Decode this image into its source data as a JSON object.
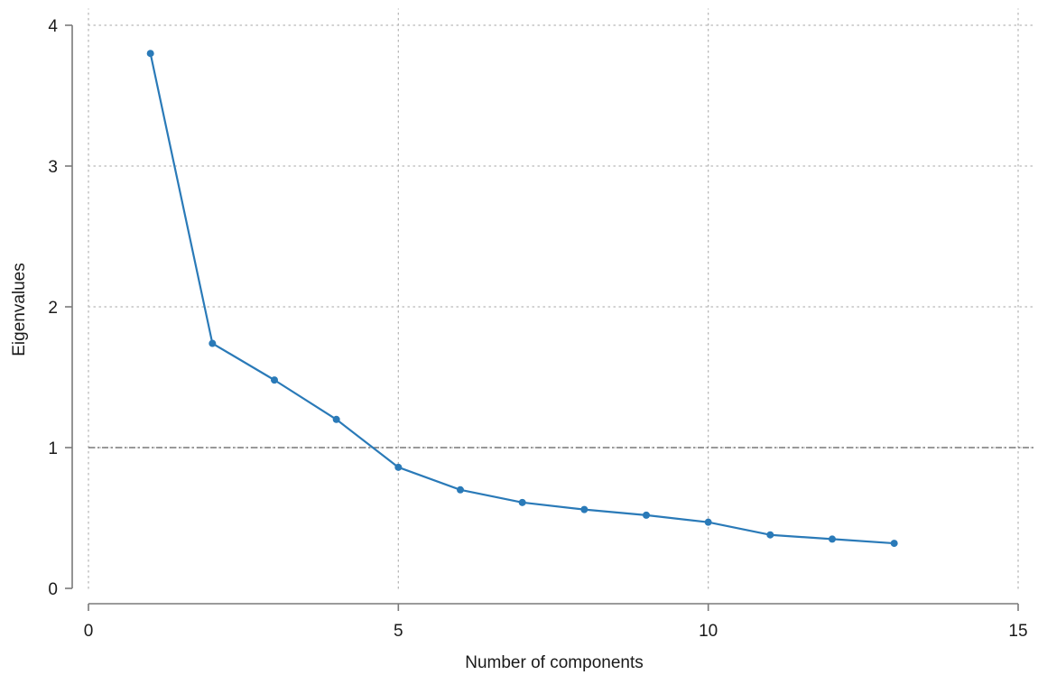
{
  "chart_data": {
    "type": "line",
    "title": "",
    "xlabel": "Number of components",
    "ylabel": "Eigenvalues",
    "xlim": [
      0,
      15
    ],
    "ylim": [
      0,
      4
    ],
    "xticks": [
      0,
      5,
      10,
      15
    ],
    "yticks": [
      0,
      1,
      2,
      3,
      4
    ],
    "xtick_labels": [
      "0",
      "5",
      "10",
      "15"
    ],
    "ytick_labels": [
      "0",
      "1",
      "2",
      "3",
      "4"
    ],
    "grid": true,
    "legend": "none",
    "reference_line": {
      "axis": "y",
      "value": 1,
      "style": "dash-dot",
      "color": "#7a7a7a"
    },
    "series": [
      {
        "color": "#2a7ab8",
        "markers": true,
        "x": [
          1,
          2,
          3,
          4,
          5,
          6,
          7,
          8,
          9,
          10,
          11,
          12,
          13
        ],
        "y": [
          3.8,
          1.74,
          1.48,
          1.2,
          0.86,
          0.7,
          0.61,
          0.56,
          0.52,
          0.47,
          0.38,
          0.35,
          0.32
        ]
      }
    ]
  }
}
